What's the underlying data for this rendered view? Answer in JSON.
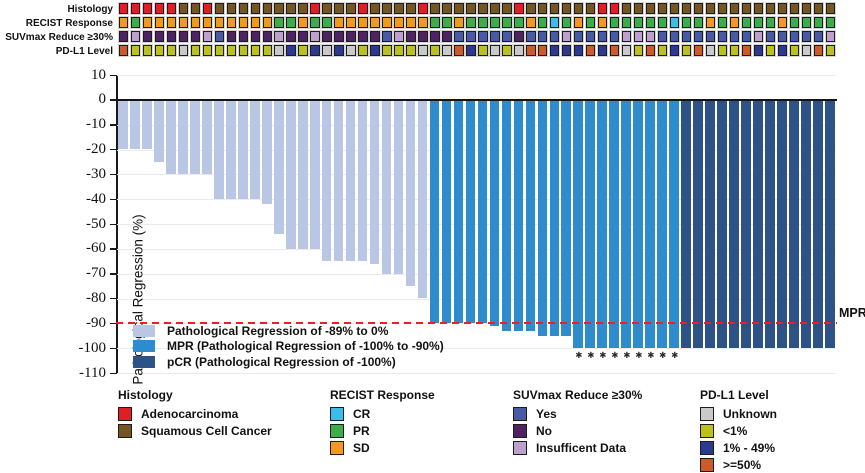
{
  "tracks": {
    "rows": [
      {
        "id": "histology",
        "label": "Histology",
        "values": [
          "A",
          "A",
          "A",
          "A",
          "A",
          "S",
          "S",
          "A",
          "S",
          "S",
          "S",
          "S",
          "S",
          "S",
          "S",
          "S",
          "A",
          "S",
          "S",
          "S",
          "A",
          "S",
          "S",
          "S",
          "S",
          "A",
          "S",
          "S",
          "S",
          "S",
          "S",
          "S",
          "S",
          "A",
          "S",
          "S",
          "S",
          "S",
          "S",
          "S",
          "A",
          "A",
          "S",
          "S",
          "S",
          "S",
          "S",
          "S",
          "S",
          "S",
          "S",
          "S",
          "S",
          "S",
          "S",
          "S",
          "S",
          "S",
          "S",
          "S"
        ]
      },
      {
        "id": "recist",
        "label": "RECIST Response",
        "values": [
          "SD",
          "PR",
          "SD",
          "SD",
          "SD",
          "SD",
          "SD",
          "SD",
          "SD",
          "SD",
          "SD",
          "SD",
          "SD",
          "PR",
          "PR",
          "SD",
          "PR",
          "PR",
          "SD",
          "SD",
          "SD",
          "SD",
          "SD",
          "SD",
          "SD",
          "SD",
          "PR",
          "PR",
          "SD",
          "PR",
          "PR",
          "PR",
          "PR",
          "PR",
          "SD",
          "PR",
          "CR",
          "PR",
          "SD",
          "PR",
          "SD",
          "PR",
          "PR",
          "PR",
          "PR",
          "PR",
          "CR",
          "PR",
          "PR",
          "SD",
          "PR",
          "SD",
          "PR",
          "PR",
          "PR",
          "SD",
          "PR",
          "PR",
          "PR",
          "PR"
        ]
      },
      {
        "id": "suvmax",
        "label": "SUVmax Reduce ≥30%",
        "values": [
          "N",
          "I",
          "N",
          "N",
          "N",
          "N",
          "N",
          "I",
          "Y",
          "N",
          "N",
          "N",
          "N",
          "I",
          "N",
          "N",
          "I",
          "N",
          "N",
          "N",
          "N",
          "N",
          "Y",
          "I",
          "N",
          "N",
          "N",
          "N",
          "Y",
          "Y",
          "Y",
          "Y",
          "Y",
          "N",
          "Y",
          "Y",
          "Y",
          "I",
          "Y",
          "Y",
          "Y",
          "Y",
          "I",
          "I",
          "I",
          "Y",
          "Y",
          "Y",
          "Y",
          "Y",
          "Y",
          "Y",
          "Y",
          "I",
          "Y",
          "Y",
          "Y",
          "Y",
          "Y",
          "I"
        ]
      },
      {
        "id": "pdl1",
        "label": "PD-L1 Level",
        "values": [
          "H",
          "L",
          "L",
          "L",
          "L",
          "U",
          "L",
          "L",
          "L",
          "L",
          "L",
          "L",
          "L",
          "U",
          "M",
          "L",
          "M",
          "U",
          "M",
          "U",
          "L",
          "M",
          "L",
          "L",
          "L",
          "U",
          "L",
          "U",
          "H",
          "M",
          "L",
          "U",
          "L",
          "U",
          "H",
          "H",
          "M",
          "M",
          "M",
          "H",
          "M",
          "H",
          "U",
          "L",
          "H",
          "L",
          "M",
          "L",
          "H",
          "U",
          "L",
          "L",
          "H",
          "M",
          "L",
          "M",
          "L",
          "U",
          "H",
          "L"
        ]
      }
    ],
    "palettes": {
      "histology": {
        "A": "#e01e25",
        "S": "#745624"
      },
      "recist": {
        "SD": "#f49820",
        "PR": "#3bae49",
        "CR": "#3bbcec"
      },
      "suvmax": {
        "Y": "#4859a6",
        "N": "#4f2361",
        "I": "#bda0ce"
      },
      "pdl1": {
        "U": "#c9c9c9",
        "L": "#bcc11e",
        "M": "#2b3a90",
        "H": "#cd5a28"
      }
    }
  },
  "chart_data": {
    "type": "bar",
    "title": "",
    "xlabel": "",
    "ylabel": "Pathological Regression (%)",
    "ylim": [
      -110,
      10
    ],
    "yticks": [
      10,
      0,
      -10,
      -20,
      -30,
      -40,
      -50,
      -60,
      -70,
      -80,
      -90,
      -100,
      -110
    ],
    "grid": "horizontal",
    "values": [
      -20,
      -20,
      -20,
      -25,
      -30,
      -30,
      -30,
      -30,
      -40,
      -40,
      -40,
      -40,
      -42,
      -54,
      -60,
      -60,
      -60,
      -65,
      -65,
      -65,
      -65,
      -66,
      -70,
      -70,
      -75,
      -80,
      -90,
      -90,
      -90,
      -90,
      -90,
      -91,
      -93,
      -93,
      -93,
      -95,
      -95,
      -95,
      -100,
      -100,
      -100,
      -100,
      -100,
      -100,
      -100,
      -100,
      -100,
      -100,
      -100,
      -100,
      -100,
      -100,
      -100,
      -100,
      -100,
      -100,
      -100,
      -100,
      -100,
      -100
    ],
    "bar_groups": [
      "L",
      "L",
      "L",
      "L",
      "L",
      "L",
      "L",
      "L",
      "L",
      "L",
      "L",
      "L",
      "L",
      "L",
      "L",
      "L",
      "L",
      "L",
      "L",
      "L",
      "L",
      "L",
      "L",
      "L",
      "L",
      "L",
      "M",
      "M",
      "M",
      "M",
      "M",
      "M",
      "M",
      "M",
      "M",
      "M",
      "M",
      "M",
      "M",
      "M",
      "M",
      "M",
      "M",
      "M",
      "M",
      "M",
      "M",
      "P",
      "P",
      "P",
      "P",
      "P",
      "P",
      "P",
      "P",
      "P",
      "P",
      "P",
      "P",
      "P"
    ],
    "group_colors": {
      "L": "#b9c7e4",
      "M": "#2f8ccc",
      "P": "#2d5286"
    },
    "asterisk_columns": [
      39,
      40,
      41,
      42,
      43,
      44,
      45,
      46,
      47
    ],
    "asterisk_glyph": "✱",
    "mpr_line": {
      "value": -90,
      "label": "MPR",
      "color": "#ec2024"
    },
    "legend": [
      {
        "key": "L",
        "label": "Pathological Regression of -89% to 0%"
      },
      {
        "key": "M",
        "label": "MPR (Pathological Regression of -100% to -90%)"
      },
      {
        "key": "P",
        "label": "pCR (Pathological Regression of -100%)"
      }
    ],
    "legend_position": "inside bottom-left"
  },
  "bottom_legend": {
    "groups": [
      {
        "title": "Histology",
        "palette": "histology",
        "items": [
          {
            "key": "A",
            "label": "Adenocarcinoma"
          },
          {
            "key": "S",
            "label": "Squamous Cell Cancer"
          }
        ]
      },
      {
        "title": "RECIST Response",
        "palette": "recist",
        "items": [
          {
            "key": "CR",
            "label": "CR"
          },
          {
            "key": "PR",
            "label": "PR"
          },
          {
            "key": "SD",
            "label": "SD"
          }
        ]
      },
      {
        "title": "SUVmax Reduce ≥30%",
        "palette": "suvmax",
        "items": [
          {
            "key": "Y",
            "label": "Yes"
          },
          {
            "key": "N",
            "label": "No"
          },
          {
            "key": "I",
            "label": "Insufficent Data"
          }
        ]
      },
      {
        "title": "PD-L1 Level",
        "palette": "pdl1",
        "items": [
          {
            "key": "U",
            "label": "Unknown"
          },
          {
            "key": "L",
            "label": "<1%"
          },
          {
            "key": "M",
            "label": "1% - 49%"
          },
          {
            "key": "H",
            "label": ">=50%"
          }
        ]
      }
    ]
  }
}
